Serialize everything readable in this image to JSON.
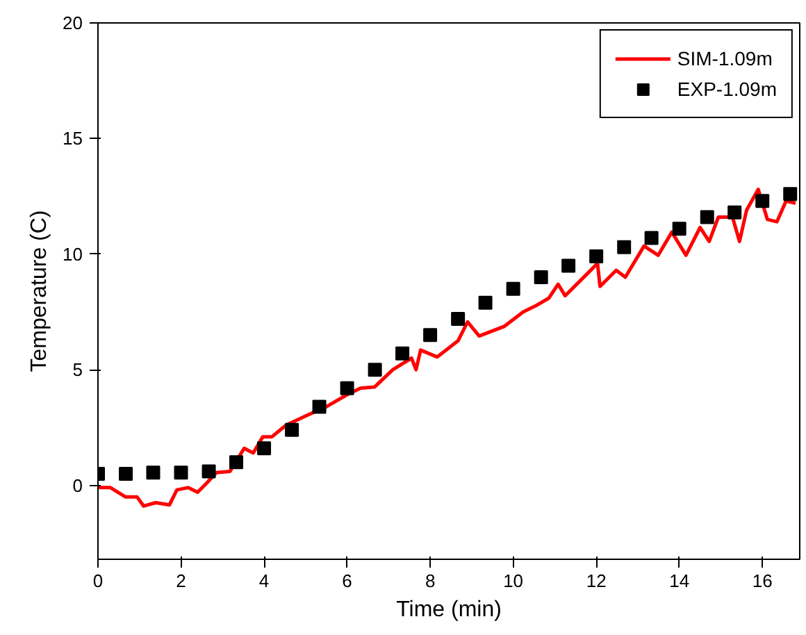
{
  "chart_data": {
    "type": "line",
    "xlabel": "Time (min)",
    "ylabel": "Temperature (C)",
    "xlim": [
      0,
      16.9
    ],
    "ylim": [
      -3.2,
      20
    ],
    "xticks": [
      0,
      2,
      4,
      6,
      8,
      10,
      12,
      14,
      16
    ],
    "yticks": [
      0,
      5,
      10,
      15,
      20
    ],
    "grid": false,
    "legend": "top right",
    "series": [
      {
        "name": "SIM-1.09m",
        "color": "#ff0000",
        "line_style": "solid",
        "x": [
          0,
          0.3,
          0.66,
          0.94,
          1.1,
          1.39,
          1.72,
          1.9,
          2.17,
          2.4,
          2.62,
          2.85,
          3.18,
          3.52,
          3.74,
          3.97,
          4.19,
          4.53,
          5.0,
          5.5,
          5.98,
          6.32,
          6.66,
          7.1,
          7.55,
          7.66,
          7.77,
          8.17,
          8.67,
          8.9,
          9.18,
          9.78,
          10.24,
          10.58,
          10.86,
          11.08,
          11.25,
          11.81,
          12.03,
          12.09,
          12.48,
          12.7,
          13.15,
          13.49,
          13.82,
          14.16,
          14.5,
          14.72,
          14.94,
          15.28,
          15.45,
          15.62,
          15.9,
          16.12,
          16.35,
          16.57,
          16.8
        ],
        "values": [
          -0.1,
          -0.1,
          -0.5,
          -0.5,
          -0.9,
          -0.75,
          -0.85,
          -0.2,
          -0.1,
          -0.3,
          0.1,
          0.55,
          0.6,
          1.6,
          1.4,
          2.1,
          2.1,
          2.6,
          3.0,
          3.4,
          3.9,
          4.2,
          4.25,
          5.0,
          5.5,
          5.0,
          5.85,
          5.55,
          6.25,
          7.07,
          6.46,
          6.87,
          7.5,
          7.8,
          8.1,
          8.7,
          8.2,
          9.2,
          9.6,
          8.6,
          9.3,
          9.0,
          10.35,
          9.95,
          10.95,
          9.95,
          11.15,
          10.55,
          11.6,
          11.6,
          10.55,
          11.9,
          12.8,
          11.5,
          11.4,
          12.3,
          12.2
        ]
      },
      {
        "name": "EXP-1.09m",
        "type": "scatter",
        "color": "#000000",
        "marker": "square",
        "x": [
          0,
          0.67,
          1.33,
          2,
          2.67,
          3.33,
          4,
          4.67,
          5.33,
          6,
          6.67,
          7.33,
          8,
          8.67,
          9.33,
          10,
          10.67,
          11.33,
          12,
          12.67,
          13.33,
          14,
          14.67,
          15.33,
          16,
          16.67
        ],
        "values": [
          0.5,
          0.5,
          0.55,
          0.55,
          0.6,
          1.0,
          1.6,
          2.4,
          3.4,
          4.2,
          5.0,
          5.7,
          6.5,
          7.2,
          7.9,
          8.5,
          9.0,
          9.5,
          9.9,
          10.3,
          10.7,
          11.1,
          11.6,
          11.8,
          12.3,
          12.6
        ]
      }
    ]
  }
}
